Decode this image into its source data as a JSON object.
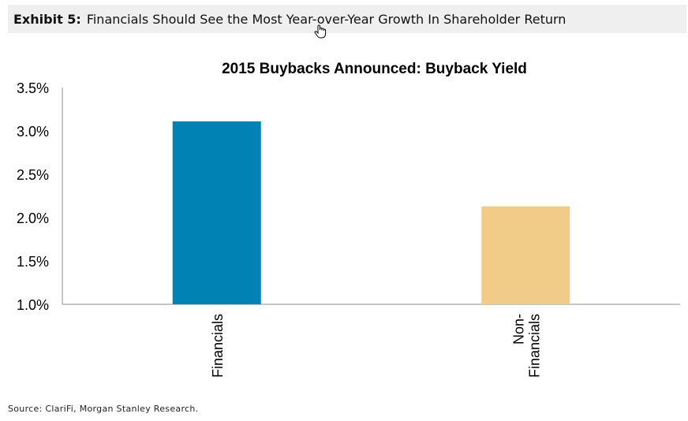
{
  "header": {
    "exhibit_label": "Exhibit 5:",
    "exhibit_title": "Financials Should See the Most Year-over-Year Growth In Shareholder Return"
  },
  "cursor": {
    "icon": "hand-pointer-icon"
  },
  "chart_data": {
    "type": "bar",
    "title": "2015 Buybacks Announced: Buyback Yield",
    "xlabel": "",
    "ylabel": "",
    "categories": [
      [
        "Financials"
      ],
      [
        "Non-",
        "Financials"
      ]
    ],
    "values": [
      3.11,
      2.13
    ],
    "ylim": [
      1.0,
      3.5
    ],
    "yticks": [
      1.0,
      1.5,
      2.0,
      2.5,
      3.0,
      3.5
    ],
    "ytick_labels": [
      "1.0%",
      "1.5%",
      "2.0%",
      "2.5%",
      "3.0%",
      "3.5%"
    ],
    "colors": [
      "#0082b4",
      "#f0cc88"
    ],
    "grid": false,
    "legend": "none"
  },
  "footer": {
    "source": "Source: ClariFi, Morgan Stanley Research."
  }
}
